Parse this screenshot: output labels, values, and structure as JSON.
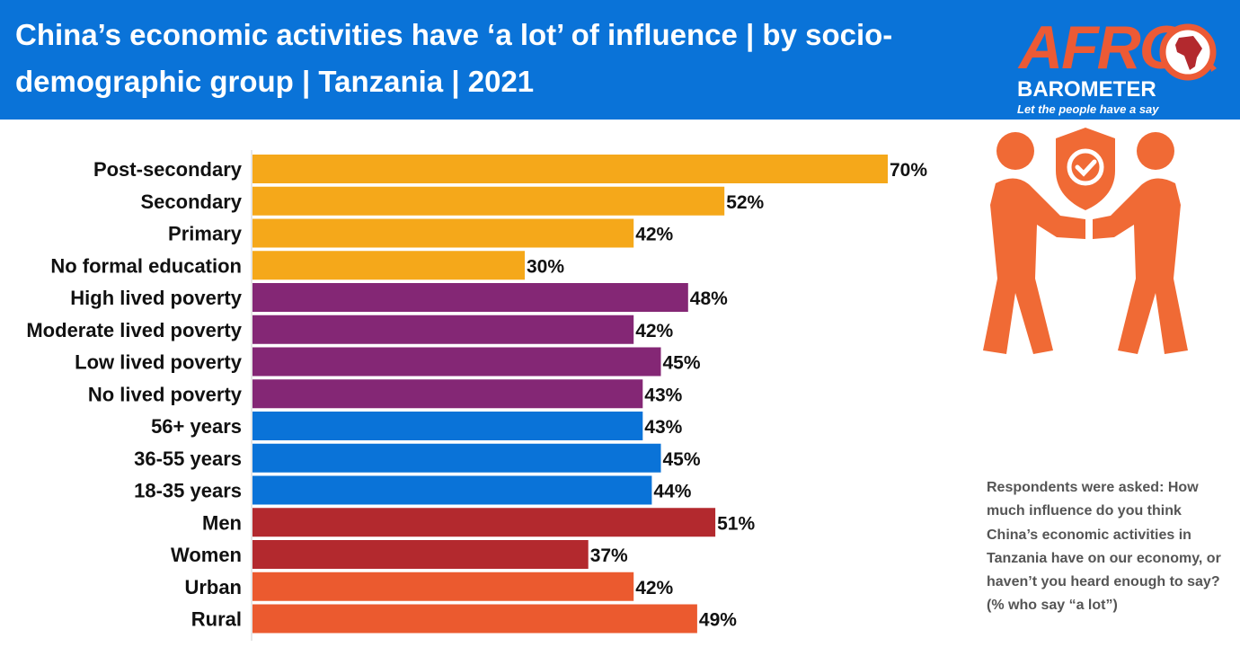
{
  "header": {
    "title": "China’s economic activities have ‘a lot’ of influence | by socio-demographic group | Tanzania | 2021"
  },
  "logo": {
    "word": "AFRO",
    "sub": "BAROMETER",
    "tagline": "Let the people have a say"
  },
  "question": {
    "lead": "Respondents were asked:",
    "text": "How much influence do you think China’s economic activities in Tanzania have on our economy, or haven’t you heard enough to say? (% who say “a lot”)"
  },
  "colors": {
    "header": "#0a73d8",
    "education": "#f5a81a",
    "poverty": "#842775",
    "age": "#0a73d8",
    "gender": "#b3292e",
    "location": "#eb5a2f",
    "illustration": "#f06a35"
  },
  "chart_data": {
    "type": "bar",
    "orientation": "horizontal",
    "categories": [
      "Post-secondary",
      "Secondary",
      "Primary",
      "No formal education",
      "High lived poverty",
      "Moderate lived poverty",
      "Low lived poverty",
      "No lived poverty",
      "56+ years",
      "36-55 years",
      "18-35 years",
      "Men",
      "Women",
      "Urban",
      "Rural"
    ],
    "values": [
      70,
      52,
      42,
      30,
      48,
      42,
      45,
      43,
      43,
      45,
      44,
      51,
      37,
      42,
      49
    ],
    "value_labels": [
      "70%",
      "52%",
      "42%",
      "30%",
      "48%",
      "42%",
      "45%",
      "43%",
      "43%",
      "45%",
      "44%",
      "51%",
      "37%",
      "42%",
      "49%"
    ],
    "groups": [
      {
        "color_key": "education",
        "count": 4
      },
      {
        "color_key": "poverty",
        "count": 4
      },
      {
        "color_key": "age",
        "count": 3
      },
      {
        "color_key": "gender",
        "count": 2
      },
      {
        "color_key": "location",
        "count": 2
      }
    ],
    "xlim": [
      0,
      100
    ],
    "grid": false,
    "legend": "none"
  }
}
